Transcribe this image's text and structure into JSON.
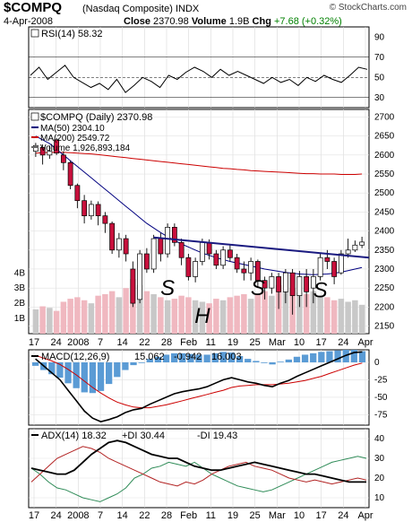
{
  "header": {
    "symbol": "$COMPQ",
    "name": "(Nasdaq Composite)",
    "exchange": "INDX",
    "date": "4-Apr-2008",
    "close_label": "Close",
    "close_value": "2370.98",
    "volume_label": "Volume",
    "volume_value": "1.9B",
    "chg_label": "Chg",
    "chg_value": "+7.68 (+0.32%)",
    "source": "© StockCharts.com"
  },
  "chart_data": [
    {
      "type": "line",
      "panel": "rsi",
      "legend": "RSI(14) 58.32",
      "y_ticks": [
        90,
        70,
        50,
        30
      ],
      "ref_lines": [
        70,
        50,
        30
      ],
      "ylim": [
        20,
        100
      ],
      "x": [
        0,
        2,
        4,
        6,
        8,
        10,
        12,
        14,
        16,
        18,
        20,
        22,
        24,
        26,
        28,
        30,
        32,
        34,
        36,
        38,
        40,
        42,
        44,
        46,
        48,
        50,
        52,
        54,
        56,
        58,
        60,
        62,
        64,
        66,
        68,
        70,
        72,
        74,
        76,
        78
      ],
      "values": [
        52,
        60,
        48,
        55,
        62,
        50,
        45,
        40,
        44,
        38,
        48,
        35,
        42,
        50,
        46,
        40,
        52,
        48,
        55,
        60,
        56,
        50,
        58,
        52,
        56,
        52,
        48,
        44,
        50,
        45,
        48,
        42,
        50,
        46,
        52,
        48,
        45,
        52,
        60,
        58
      ]
    },
    {
      "type": "candlestick",
      "panel": "price",
      "legend": [
        "$COMPQ (Daily) 2370.98",
        "MA(50) 2304.10",
        "MA(200) 2549.72",
        "Volume 1,926,893,184"
      ],
      "y_ticks": [
        2700,
        2650,
        2600,
        2550,
        2500,
        2450,
        2400,
        2350,
        2300,
        2250,
        2200,
        2150
      ],
      "ylim": [
        2130,
        2720
      ],
      "volume_ticks": [
        "4B",
        "3B",
        "2B",
        "1B"
      ],
      "x_ticks": [
        "17",
        "24",
        "2008",
        "7",
        "14",
        "22",
        "28",
        "Feb",
        "11",
        "19",
        "25",
        "Mar",
        "10",
        "17",
        "24",
        "Apr"
      ],
      "candles": [
        {
          "o": 2610,
          "c": 2625,
          "h": 2632,
          "l": 2595
        },
        {
          "o": 2620,
          "c": 2600,
          "h": 2628,
          "l": 2575
        },
        {
          "o": 2600,
          "c": 2610,
          "h": 2625,
          "l": 2590
        },
        {
          "o": 2640,
          "c": 2605,
          "h": 2645,
          "l": 2600
        },
        {
          "o": 2600,
          "c": 2580,
          "h": 2610,
          "l": 2560
        },
        {
          "o": 2580,
          "c": 2520,
          "h": 2585,
          "l": 2510
        },
        {
          "o": 2520,
          "c": 2480,
          "h": 2525,
          "l": 2460
        },
        {
          "o": 2480,
          "c": 2440,
          "h": 2495,
          "l": 2420
        },
        {
          "o": 2440,
          "c": 2470,
          "h": 2480,
          "l": 2430
        },
        {
          "o": 2470,
          "c": 2440,
          "h": 2478,
          "l": 2415
        },
        {
          "o": 2440,
          "c": 2420,
          "h": 2450,
          "l": 2395
        },
        {
          "o": 2420,
          "c": 2350,
          "h": 2425,
          "l": 2340
        },
        {
          "o": 2350,
          "c": 2380,
          "h": 2395,
          "l": 2330
        },
        {
          "o": 2380,
          "c": 2340,
          "h": 2390,
          "l": 2320
        },
        {
          "o": 2300,
          "c": 2210,
          "h": 2320,
          "l": 2200
        },
        {
          "o": 2220,
          "c": 2340,
          "h": 2350,
          "l": 2210
        },
        {
          "o": 2340,
          "c": 2300,
          "h": 2355,
          "l": 2290
        },
        {
          "o": 2300,
          "c": 2380,
          "h": 2390,
          "l": 2290
        },
        {
          "o": 2380,
          "c": 2340,
          "h": 2395,
          "l": 2320
        },
        {
          "o": 2340,
          "c": 2410,
          "h": 2420,
          "l": 2330
        },
        {
          "o": 2410,
          "c": 2370,
          "h": 2420,
          "l": 2360
        },
        {
          "o": 2370,
          "c": 2330,
          "h": 2380,
          "l": 2310
        },
        {
          "o": 2330,
          "c": 2280,
          "h": 2340,
          "l": 2270
        },
        {
          "o": 2280,
          "c": 2320,
          "h": 2330,
          "l": 2265
        },
        {
          "o": 2320,
          "c": 2370,
          "h": 2380,
          "l": 2310
        },
        {
          "o": 2370,
          "c": 2340,
          "h": 2378,
          "l": 2325
        },
        {
          "o": 2340,
          "c": 2310,
          "h": 2350,
          "l": 2300
        },
        {
          "o": 2310,
          "c": 2350,
          "h": 2360,
          "l": 2300
        },
        {
          "o": 2350,
          "c": 2330,
          "h": 2365,
          "l": 2320
        },
        {
          "o": 2330,
          "c": 2300,
          "h": 2340,
          "l": 2290
        },
        {
          "o": 2300,
          "c": 2290,
          "h": 2320,
          "l": 2270
        },
        {
          "o": 2290,
          "c": 2320,
          "h": 2330,
          "l": 2270
        },
        {
          "o": 2320,
          "c": 2270,
          "h": 2325,
          "l": 2250
        },
        {
          "o": 2270,
          "c": 2250,
          "h": 2280,
          "l": 2220
        },
        {
          "o": 2250,
          "c": 2280,
          "h": 2290,
          "l": 2235
        },
        {
          "o": 2280,
          "c": 2240,
          "h": 2290,
          "l": 2195
        },
        {
          "o": 2240,
          "c": 2290,
          "h": 2300,
          "l": 2210
        },
        {
          "o": 2290,
          "c": 2230,
          "h": 2300,
          "l": 2180
        },
        {
          "o": 2230,
          "c": 2280,
          "h": 2295,
          "l": 2200
        },
        {
          "o": 2280,
          "c": 2240,
          "h": 2300,
          "l": 2200
        },
        {
          "o": 2250,
          "c": 2280,
          "h": 2300,
          "l": 2210
        },
        {
          "o": 2280,
          "c": 2330,
          "h": 2340,
          "l": 2270
        },
        {
          "o": 2330,
          "c": 2320,
          "h": 2350,
          "l": 2300
        },
        {
          "o": 2320,
          "c": 2280,
          "h": 2330,
          "l": 2260
        },
        {
          "o": 2290,
          "c": 2340,
          "h": 2350,
          "l": 2285
        },
        {
          "o": 2340,
          "c": 2350,
          "h": 2380,
          "l": 2330
        },
        {
          "o": 2350,
          "c": 2363,
          "h": 2375,
          "l": 2345
        },
        {
          "o": 2363,
          "c": 2371,
          "h": 2385,
          "l": 2355
        }
      ],
      "ma50": [
        2650,
        2640,
        2630,
        2615,
        2600,
        2585,
        2570,
        2555,
        2540,
        2525,
        2510,
        2495,
        2480,
        2465,
        2450,
        2435,
        2420,
        2408,
        2396,
        2385,
        2375,
        2366,
        2358,
        2350,
        2342,
        2336,
        2330,
        2325,
        2320,
        2316,
        2312,
        2308,
        2304,
        2300,
        2297,
        2294,
        2291,
        2289,
        2287,
        2286,
        2285,
        2286,
        2287,
        2289,
        2292,
        2296,
        2300,
        2304
      ],
      "ma200": [
        2605,
        2606,
        2607,
        2607,
        2607,
        2606,
        2605,
        2604,
        2603,
        2601,
        2599,
        2597,
        2595,
        2593,
        2591,
        2589,
        2587,
        2585,
        2583,
        2581,
        2579,
        2577,
        2575,
        2573,
        2571,
        2569,
        2567,
        2565,
        2564,
        2562,
        2561,
        2559,
        2558,
        2557,
        2556,
        2555,
        2554,
        2553,
        2552,
        2551,
        2551,
        2550,
        2550,
        2550,
        2549,
        2549,
        2549,
        2550
      ],
      "volume": [
        1.6,
        1.8,
        1.7,
        1.5,
        2.1,
        2.3,
        2.4,
        2.2,
        2.0,
        2.5,
        2.6,
        2.8,
        2.4,
        3.0,
        3.6,
        3.2,
        2.8,
        2.6,
        2.4,
        2.2,
        2.3,
        2.5,
        2.4,
        2.2,
        2.1,
        2.0,
        2.3,
        2.2,
        2.4,
        2.5,
        2.6,
        2.3,
        2.6,
        2.8,
        2.5,
        3.2,
        2.8,
        3.0,
        2.7,
        2.6,
        2.8,
        2.5,
        2.4,
        2.2,
        2.3,
        2.1,
        2.2,
        1.9
      ],
      "trendline": {
        "from": {
          "i": 17,
          "v": 2383
        },
        "to": {
          "i": 47,
          "v": 2330
        }
      },
      "annotations": [
        {
          "text": "S",
          "i": 19,
          "v": 2232,
          "color": "#000080"
        },
        {
          "text": "S",
          "i": 32,
          "v": 2232,
          "color": "#000080"
        },
        {
          "text": "H",
          "i": 24,
          "v": 2158,
          "color": "#000080"
        },
        {
          "text": "S",
          "i": 41,
          "v": 2225,
          "color": "#000080"
        }
      ]
    },
    {
      "type": "line",
      "panel": "macd",
      "legend": [
        "MACD(12,26,9)",
        "15.062",
        "-0.942",
        "16.003"
      ],
      "y_ticks": [
        0,
        -25,
        -50,
        -75
      ],
      "ylim": [
        -90,
        18
      ],
      "macd": [
        5,
        -5,
        -15,
        -25,
        -40,
        -55,
        -70,
        -80,
        -85,
        -82,
        -78,
        -72,
        -68,
        -66,
        -60,
        -55,
        -50,
        -45,
        -42,
        -40,
        -38,
        -35,
        -30,
        -25,
        -22,
        -25,
        -28,
        -30,
        -33,
        -35,
        -30,
        -26,
        -20,
        -15,
        -10,
        -5,
        0,
        5,
        10,
        14,
        15
      ],
      "signal": [
        10,
        6,
        2,
        -3,
        -10,
        -18,
        -27,
        -36,
        -44,
        -51,
        -57,
        -61,
        -64,
        -65,
        -65,
        -63,
        -61,
        -58,
        -55,
        -52,
        -49,
        -46,
        -43,
        -40,
        -36,
        -34,
        -33,
        -32,
        -32,
        -32,
        -31,
        -30,
        -28,
        -26,
        -23,
        -20,
        -16,
        -12,
        -8,
        -4,
        -1
      ],
      "histogram": [
        -5,
        -11,
        -17,
        -22,
        -30,
        -37,
        -43,
        -44,
        -41,
        -31,
        -21,
        -11,
        -4,
        -1,
        5,
        8,
        11,
        13,
        13,
        12,
        11,
        11,
        13,
        15,
        14,
        9,
        5,
        2,
        -1,
        -3,
        1,
        4,
        8,
        11,
        13,
        15,
        16,
        17,
        18,
        18,
        16
      ]
    },
    {
      "type": "line",
      "panel": "adx",
      "legend": [
        "ADX(14) 18.32",
        "+DI 30.44",
        "-DI 19.43"
      ],
      "y_ticks": [
        40,
        30,
        20,
        10
      ],
      "ylim": [
        5,
        45
      ],
      "adx": [
        25,
        24,
        23,
        22,
        22,
        24,
        28,
        32,
        35,
        38,
        39,
        38,
        36,
        34,
        32,
        31,
        30,
        30,
        28,
        26,
        25,
        24,
        24,
        25,
        26,
        27,
        28,
        27,
        26,
        25,
        24,
        23,
        22,
        22,
        21,
        20,
        19,
        18,
        18,
        18
      ],
      "plus_di": [
        25,
        22,
        18,
        15,
        14,
        12,
        10,
        9,
        8,
        10,
        12,
        15,
        20,
        22,
        25,
        26,
        28,
        27,
        26,
        28,
        25,
        22,
        20,
        18,
        16,
        15,
        14,
        13,
        14,
        16,
        18,
        20,
        22,
        24,
        26,
        28,
        29,
        30,
        31,
        30
      ],
      "minus_di": [
        18,
        22,
        26,
        30,
        32,
        34,
        36,
        35,
        33,
        30,
        28,
        26,
        24,
        22,
        20,
        18,
        17,
        16,
        18,
        17,
        19,
        22,
        24,
        26,
        27,
        28,
        26,
        25,
        24,
        22,
        20,
        19,
        18,
        19,
        18,
        17,
        18,
        19,
        20,
        19
      ]
    }
  ]
}
